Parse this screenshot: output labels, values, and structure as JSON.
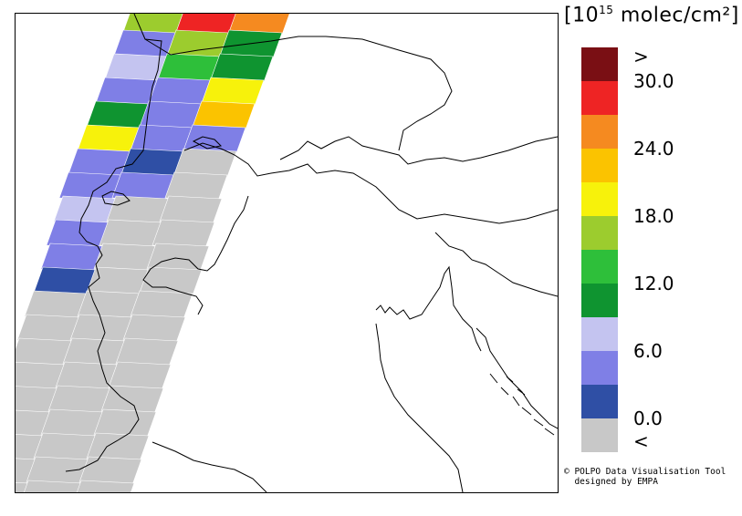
{
  "colorbar": {
    "unit_prefix": "[10",
    "unit_exp": "15",
    "unit_suffix": " molec/cm²]",
    "colors": [
      "#7a0f14",
      "#ee2424",
      "#f58a20",
      "#fbc300",
      "#f7f20b",
      "#9ccc2e",
      "#2ebf3a",
      "#0f9430",
      "#c4c4f0",
      "#7f7fe6",
      "#2f4fa5",
      "#c8c8c8"
    ],
    "labels": [
      ">",
      "30.0",
      "24.0",
      "18.0",
      "12.0",
      "6.0",
      "0.0",
      "<"
    ],
    "label_rows": [
      0,
      1,
      3,
      5,
      7,
      9,
      11,
      12
    ]
  },
  "credit": {
    "line1": "© POLPO Data Visualisation Tool",
    "line2": "  designed by EMPA"
  },
  "colors": {
    "no_data": "#c8c8c8",
    "border": "#000000"
  }
}
